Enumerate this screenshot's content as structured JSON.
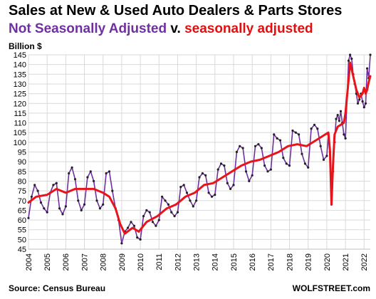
{
  "header": {
    "title": "Sales at New & Used Auto Dealers & Parts Stores",
    "subtitle_nsa": "Not Seasonally Adjusted",
    "subtitle_v": " v. ",
    "subtitle_sa": "seasonally adjusted",
    "unit": "Billion $"
  },
  "footer": {
    "source": "Source: Census Bureau",
    "brand": "WOLFSTREET.com"
  },
  "colors": {
    "nsa": "#7030a0",
    "sa": "#e8141b",
    "grid": "#d9d9d9"
  },
  "chart_data": {
    "type": "line",
    "grid": true,
    "ylim": [
      45,
      145
    ],
    "yticks": [
      45,
      50,
      55,
      60,
      65,
      70,
      75,
      80,
      85,
      90,
      95,
      100,
      105,
      110,
      115,
      120,
      125,
      130,
      135,
      140,
      145
    ],
    "xticks": [
      "2004",
      "2005",
      "2006",
      "2007",
      "2008",
      "2009",
      "2010",
      "2011",
      "2012",
      "2013",
      "2014",
      "2015",
      "2016",
      "2017",
      "2018",
      "2019",
      "2020",
      "2021",
      "2022"
    ],
    "xrange": [
      "2004-01",
      "2022-05"
    ],
    "series": [
      {
        "name": "Not Seasonally Adjusted",
        "points": [
          [
            "2004-01",
            61
          ],
          [
            "2004-03",
            72
          ],
          [
            "2004-05",
            78
          ],
          [
            "2004-07",
            75
          ],
          [
            "2004-09",
            69
          ],
          [
            "2004-11",
            66
          ],
          [
            "2005-01",
            64
          ],
          [
            "2005-03",
            74
          ],
          [
            "2005-05",
            78
          ],
          [
            "2005-07",
            79
          ],
          [
            "2005-09",
            66
          ],
          [
            "2005-11",
            63
          ],
          [
            "2006-01",
            67
          ],
          [
            "2006-03",
            84
          ],
          [
            "2006-05",
            87
          ],
          [
            "2006-07",
            81
          ],
          [
            "2006-09",
            70
          ],
          [
            "2006-11",
            65
          ],
          [
            "2007-01",
            68
          ],
          [
            "2007-03",
            82
          ],
          [
            "2007-05",
            85
          ],
          [
            "2007-07",
            80
          ],
          [
            "2007-09",
            70
          ],
          [
            "2007-11",
            66
          ],
          [
            "2008-01",
            68
          ],
          [
            "2008-03",
            84
          ],
          [
            "2008-05",
            85
          ],
          [
            "2008-07",
            75
          ],
          [
            "2008-09",
            66
          ],
          [
            "2008-11",
            60
          ],
          [
            "2009-01",
            48
          ],
          [
            "2009-03",
            54
          ],
          [
            "2009-05",
            56
          ],
          [
            "2009-07",
            59
          ],
          [
            "2009-09",
            57
          ],
          [
            "2009-11",
            51
          ],
          [
            "2010-01",
            50
          ],
          [
            "2010-03",
            62
          ],
          [
            "2010-05",
            65
          ],
          [
            "2010-07",
            64
          ],
          [
            "2010-09",
            59
          ],
          [
            "2010-11",
            57
          ],
          [
            "2011-01",
            60
          ],
          [
            "2011-03",
            72
          ],
          [
            "2011-05",
            70
          ],
          [
            "2011-07",
            68
          ],
          [
            "2011-09",
            64
          ],
          [
            "2011-11",
            62
          ],
          [
            "2012-01",
            64
          ],
          [
            "2012-03",
            77
          ],
          [
            "2012-05",
            78
          ],
          [
            "2012-07",
            74
          ],
          [
            "2012-09",
            70
          ],
          [
            "2012-11",
            67
          ],
          [
            "2013-01",
            70
          ],
          [
            "2013-03",
            82
          ],
          [
            "2013-05",
            84
          ],
          [
            "2013-07",
            83
          ],
          [
            "2013-09",
            74
          ],
          [
            "2013-11",
            72
          ],
          [
            "2014-01",
            73
          ],
          [
            "2014-03",
            86
          ],
          [
            "2014-05",
            89
          ],
          [
            "2014-07",
            88
          ],
          [
            "2014-09",
            79
          ],
          [
            "2014-11",
            76
          ],
          [
            "2015-01",
            78
          ],
          [
            "2015-03",
            95
          ],
          [
            "2015-05",
            98
          ],
          [
            "2015-07",
            97
          ],
          [
            "2015-09",
            85
          ],
          [
            "2015-11",
            80
          ],
          [
            "2016-01",
            83
          ],
          [
            "2016-03",
            98
          ],
          [
            "2016-05",
            99
          ],
          [
            "2016-07",
            97
          ],
          [
            "2016-09",
            88
          ],
          [
            "2016-11",
            85
          ],
          [
            "2017-01",
            86
          ],
          [
            "2017-03",
            104
          ],
          [
            "2017-05",
            102
          ],
          [
            "2017-07",
            101
          ],
          [
            "2017-09",
            92
          ],
          [
            "2017-11",
            89
          ],
          [
            "2018-01",
            88
          ],
          [
            "2018-03",
            106
          ],
          [
            "2018-05",
            105
          ],
          [
            "2018-07",
            104
          ],
          [
            "2018-09",
            94
          ],
          [
            "2018-11",
            89
          ],
          [
            "2019-01",
            87
          ],
          [
            "2019-03",
            107
          ],
          [
            "2019-05",
            109
          ],
          [
            "2019-07",
            107
          ],
          [
            "2019-09",
            98
          ],
          [
            "2019-11",
            91
          ],
          [
            "2020-01",
            93
          ],
          [
            "2020-02",
            104
          ],
          [
            "2020-03",
            95
          ],
          [
            "2020-04",
            68
          ],
          [
            "2020-05",
            85
          ],
          [
            "2020-06",
            100
          ],
          [
            "2020-07",
            112
          ],
          [
            "2020-08",
            114
          ],
          [
            "2020-09",
            111
          ],
          [
            "2020-10",
            116
          ],
          [
            "2020-11",
            110
          ],
          [
            "2020-12",
            104
          ],
          [
            "2021-01",
            102
          ],
          [
            "2021-03",
            142
          ],
          [
            "2021-04",
            145
          ],
          [
            "2021-05",
            143
          ],
          [
            "2021-06",
            135
          ],
          [
            "2021-07",
            130
          ],
          [
            "2021-08",
            125
          ],
          [
            "2021-09",
            120
          ],
          [
            "2021-10",
            122
          ],
          [
            "2021-11",
            125
          ],
          [
            "2021-12",
            121
          ],
          [
            "2022-01",
            118
          ],
          [
            "2022-02",
            120
          ],
          [
            "2022-03",
            138
          ],
          [
            "2022-04",
            133
          ],
          [
            "2022-05",
            145
          ]
        ]
      },
      {
        "name": "seasonally adjusted",
        "points": [
          [
            "2004-01",
            69
          ],
          [
            "2004-06",
            72
          ],
          [
            "2005-01",
            73
          ],
          [
            "2005-07",
            76
          ],
          [
            "2006-01",
            74
          ],
          [
            "2006-07",
            76
          ],
          [
            "2007-01",
            76
          ],
          [
            "2007-07",
            76
          ],
          [
            "2008-01",
            74
          ],
          [
            "2008-05",
            72
          ],
          [
            "2008-09",
            66
          ],
          [
            "2008-12",
            58
          ],
          [
            "2009-03",
            53
          ],
          [
            "2009-08",
            56
          ],
          [
            "2009-12",
            54
          ],
          [
            "2010-05",
            59
          ],
          [
            "2010-12",
            62
          ],
          [
            "2011-06",
            66
          ],
          [
            "2011-12",
            68
          ],
          [
            "2012-06",
            72
          ],
          [
            "2012-12",
            74
          ],
          [
            "2013-06",
            78
          ],
          [
            "2013-12",
            79
          ],
          [
            "2014-06",
            82
          ],
          [
            "2014-12",
            85
          ],
          [
            "2015-06",
            88
          ],
          [
            "2015-12",
            90
          ],
          [
            "2016-06",
            91
          ],
          [
            "2016-12",
            93
          ],
          [
            "2017-06",
            95
          ],
          [
            "2017-12",
            98
          ],
          [
            "2018-06",
            99
          ],
          [
            "2018-12",
            98
          ],
          [
            "2019-06",
            101
          ],
          [
            "2019-12",
            104
          ],
          [
            "2020-02",
            105
          ],
          [
            "2020-03",
            96
          ],
          [
            "2020-04",
            68
          ],
          [
            "2020-05",
            88
          ],
          [
            "2020-06",
            104
          ],
          [
            "2020-08",
            108
          ],
          [
            "2020-10",
            109
          ],
          [
            "2020-12",
            110
          ],
          [
            "2021-01",
            115
          ],
          [
            "2021-03",
            132
          ],
          [
            "2021-04",
            141
          ],
          [
            "2021-06",
            134
          ],
          [
            "2021-08",
            127
          ],
          [
            "2021-10",
            123
          ],
          [
            "2021-12",
            125
          ],
          [
            "2022-01",
            128
          ],
          [
            "2022-02",
            125
          ],
          [
            "2022-03",
            127
          ],
          [
            "2022-04",
            131
          ],
          [
            "2022-05",
            134
          ]
        ]
      }
    ]
  }
}
